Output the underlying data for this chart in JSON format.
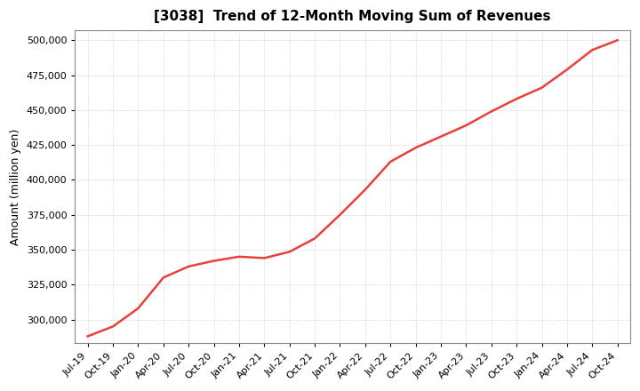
{
  "title": "[3038]  Trend of 12-Month Moving Sum of Revenues",
  "ylabel": "Amount (million yen)",
  "ylim": [
    283000,
    507000
  ],
  "yticks": [
    300000,
    325000,
    350000,
    375000,
    400000,
    425000,
    450000,
    475000,
    500000
  ],
  "line_color": "#e8403a",
  "bg_color": "#ffffff",
  "plot_bg_color": "#ffffff",
  "grid_color": "#aaaaaa",
  "x_labels": [
    "Jul-19",
    "Oct-19",
    "Jan-20",
    "Apr-20",
    "Jul-20",
    "Oct-20",
    "Jan-21",
    "Apr-21",
    "Jul-21",
    "Oct-21",
    "Jan-22",
    "Apr-22",
    "Jul-22",
    "Oct-22",
    "Jan-23",
    "Apr-23",
    "Jul-23",
    "Oct-23",
    "Jan-24",
    "Apr-24",
    "Jul-24",
    "Oct-24"
  ],
  "data_points": [
    288000,
    295000,
    308000,
    330000,
    338000,
    342000,
    345000,
    344000,
    348500,
    358000,
    375000,
    393000,
    413000,
    423000,
    431000,
    439000,
    449000,
    458000,
    466000,
    479000,
    493000,
    500000
  ]
}
